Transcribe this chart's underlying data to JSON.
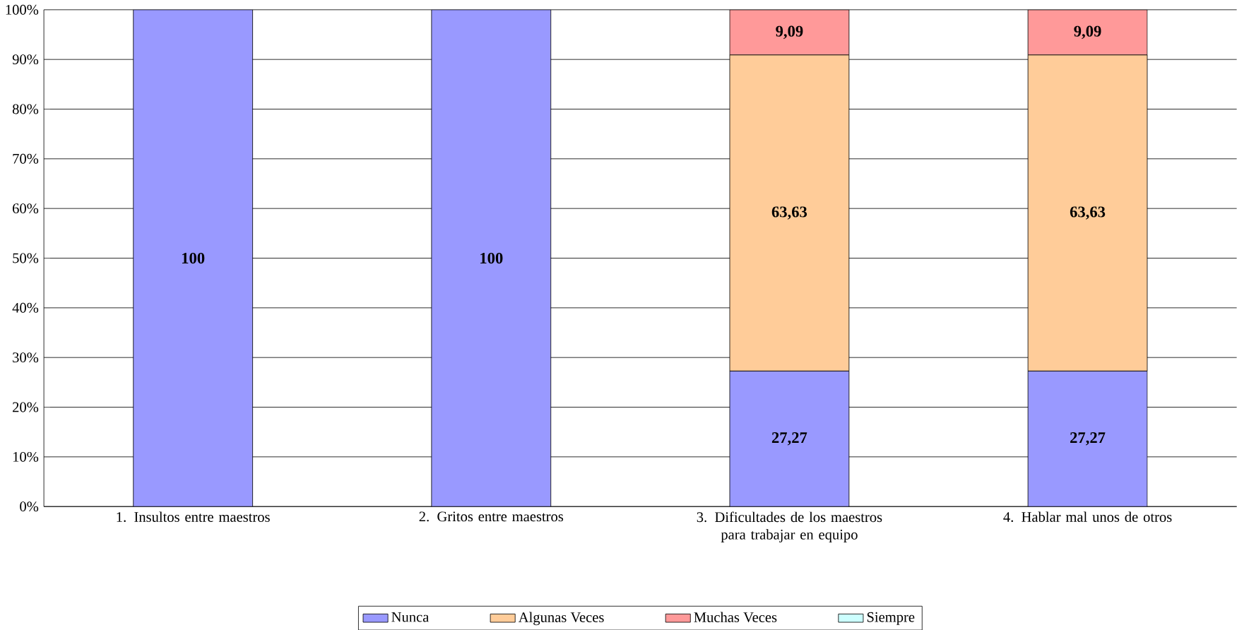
{
  "chart_data": {
    "type": "bar",
    "stacked": true,
    "categories": [
      "1. Insultos entre maestros",
      "2. Gritos entre maestros",
      "3. Dificultades de los maestros para trabajar en equipo",
      "4. Hablar mal unos de otros"
    ],
    "series": [
      {
        "name": "Nunca",
        "color": "#9999ff",
        "values": [
          100,
          100,
          27.27,
          27.27
        ],
        "value_labels": [
          "100",
          "100",
          "27,27",
          "27,27"
        ]
      },
      {
        "name": "Algunas Veces",
        "color": "#ffcc99",
        "values": [
          0,
          0,
          63.63,
          63.63
        ],
        "value_labels": [
          null,
          null,
          "63,63",
          "63,63"
        ]
      },
      {
        "name": "Muchas Veces",
        "color": "#ff9999",
        "values": [
          0,
          0,
          9.09,
          9.09
        ],
        "value_labels": [
          null,
          null,
          "9,09",
          "9,09"
        ]
      },
      {
        "name": "Siempre",
        "color": "#ccffff",
        "values": [
          0,
          0,
          0,
          0
        ],
        "value_labels": [
          null,
          null,
          null,
          null
        ]
      }
    ],
    "ylim": [
      0,
      100
    ],
    "yticks": [
      {
        "value": 0,
        "label": "0%"
      },
      {
        "value": 10,
        "label": "10%"
      },
      {
        "value": 20,
        "label": "20%"
      },
      {
        "value": 30,
        "label": "30%"
      },
      {
        "value": 40,
        "label": "40%"
      },
      {
        "value": 50,
        "label": "50%"
      },
      {
        "value": 60,
        "label": "60%"
      },
      {
        "value": 70,
        "label": "70%"
      },
      {
        "value": 80,
        "label": "80%"
      },
      {
        "value": 90,
        "label": "90%"
      },
      {
        "value": 100,
        "label": "100%"
      }
    ],
    "grid": "y",
    "legend": "bottom"
  }
}
